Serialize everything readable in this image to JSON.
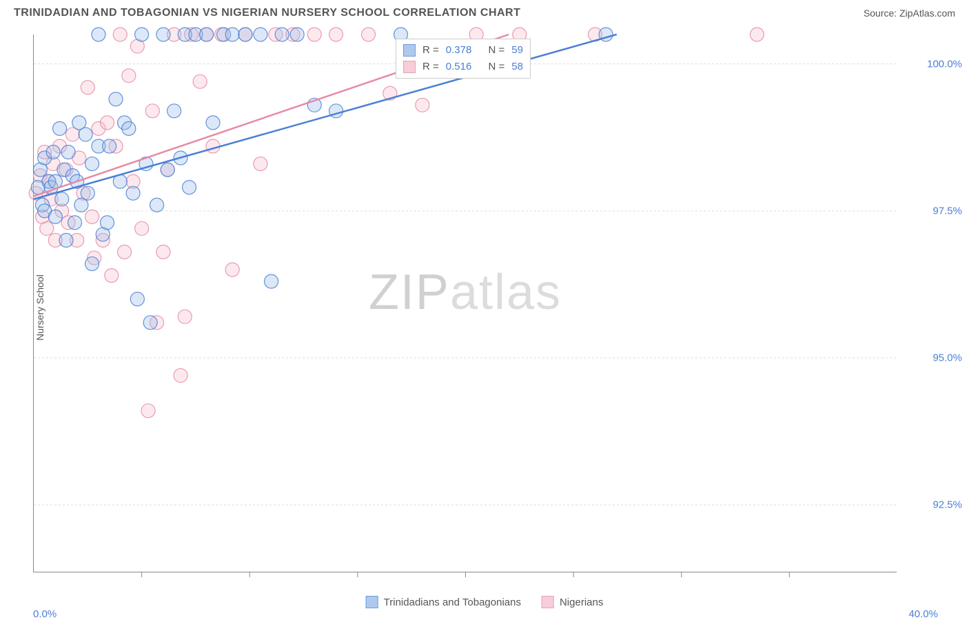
{
  "header": {
    "title": "TRINIDADIAN AND TOBAGONIAN VS NIGERIAN NURSERY SCHOOL CORRELATION CHART",
    "source_label": "Source: ",
    "source_value": "ZipAtlas.com"
  },
  "watermark": {
    "bold": "ZIP",
    "light": "atlas"
  },
  "chart": {
    "type": "scatter",
    "background_color": "#ffffff",
    "grid_color": "#dddddd",
    "axis_color": "#888888",
    "text_color": "#555555",
    "tick_color": "#4a7fd6",
    "font_size_title": 16,
    "font_size_labels": 14,
    "font_size_ticks": 15,
    "ylabel": "Nursery School",
    "xlim": [
      0.0,
      40.0
    ],
    "ylim": [
      91.35,
      100.5
    ],
    "x_ticks_minor": [
      5,
      10,
      15,
      20,
      25,
      30,
      35
    ],
    "x_tick_labels": {
      "start": "0.0%",
      "end": "40.0%"
    },
    "y_grid": [
      92.5,
      95.0,
      97.5,
      100.0
    ],
    "y_tick_labels": [
      "92.5%",
      "95.0%",
      "97.5%",
      "100.0%"
    ],
    "marker_radius": 10,
    "marker_fill_opacity": 0.35,
    "marker_stroke_width": 1.2,
    "line_width": 2.5,
    "series": [
      {
        "name": "Trinidadians and Tobagonians",
        "color_stroke": "#4a7fd6",
        "color_fill": "#9cbce9",
        "R": "0.378",
        "N": "59",
        "trend": {
          "x1": 0.0,
          "y1": 97.7,
          "x2": 27.0,
          "y2": 100.5
        },
        "points": [
          [
            0.2,
            97.9
          ],
          [
            0.3,
            98.2
          ],
          [
            0.4,
            97.6
          ],
          [
            0.5,
            98.4
          ],
          [
            0.5,
            97.5
          ],
          [
            0.7,
            98.0
          ],
          [
            0.8,
            97.9
          ],
          [
            0.9,
            98.5
          ],
          [
            1.0,
            98.0
          ],
          [
            1.0,
            97.4
          ],
          [
            1.2,
            98.9
          ],
          [
            1.3,
            97.7
          ],
          [
            1.4,
            98.2
          ],
          [
            1.5,
            97.0
          ],
          [
            1.6,
            98.5
          ],
          [
            1.8,
            98.1
          ],
          [
            1.9,
            97.3
          ],
          [
            2.0,
            98.0
          ],
          [
            2.1,
            99.0
          ],
          [
            2.2,
            97.6
          ],
          [
            2.4,
            98.8
          ],
          [
            2.5,
            97.8
          ],
          [
            2.7,
            96.6
          ],
          [
            2.7,
            98.3
          ],
          [
            3.0,
            98.6
          ],
          [
            3.0,
            100.5
          ],
          [
            3.2,
            97.1
          ],
          [
            3.4,
            97.3
          ],
          [
            3.5,
            98.6
          ],
          [
            3.8,
            99.4
          ],
          [
            4.0,
            98.0
          ],
          [
            4.2,
            99.0
          ],
          [
            4.4,
            98.9
          ],
          [
            4.6,
            97.8
          ],
          [
            4.8,
            96.0
          ],
          [
            5.0,
            100.5
          ],
          [
            5.2,
            98.3
          ],
          [
            5.4,
            95.6
          ],
          [
            5.7,
            97.6
          ],
          [
            6.0,
            100.5
          ],
          [
            6.2,
            98.2
          ],
          [
            6.5,
            99.2
          ],
          [
            6.8,
            98.4
          ],
          [
            7.0,
            100.5
          ],
          [
            7.2,
            97.9
          ],
          [
            7.5,
            100.5
          ],
          [
            8.0,
            100.5
          ],
          [
            8.3,
            99.0
          ],
          [
            8.8,
            100.5
          ],
          [
            9.2,
            100.5
          ],
          [
            9.8,
            100.5
          ],
          [
            10.5,
            100.5
          ],
          [
            11.0,
            96.3
          ],
          [
            11.5,
            100.5
          ],
          [
            12.2,
            100.5
          ],
          [
            13.0,
            99.3
          ],
          [
            14.0,
            99.2
          ],
          [
            17.0,
            100.5
          ],
          [
            26.5,
            100.5
          ]
        ]
      },
      {
        "name": "Nigerians",
        "color_stroke": "#e68aa4",
        "color_fill": "#f5c1cf",
        "R": "0.516",
        "N": "58",
        "trend": {
          "x1": 0.0,
          "y1": 97.75,
          "x2": 22.0,
          "y2": 100.5
        },
        "points": [
          [
            0.1,
            97.8
          ],
          [
            0.3,
            98.1
          ],
          [
            0.4,
            97.4
          ],
          [
            0.5,
            98.5
          ],
          [
            0.6,
            97.2
          ],
          [
            0.7,
            98.0
          ],
          [
            0.8,
            97.7
          ],
          [
            0.9,
            98.3
          ],
          [
            1.0,
            97.0
          ],
          [
            1.2,
            98.6
          ],
          [
            1.3,
            97.5
          ],
          [
            1.5,
            98.2
          ],
          [
            1.6,
            97.3
          ],
          [
            1.8,
            98.8
          ],
          [
            2.0,
            97.0
          ],
          [
            2.1,
            98.4
          ],
          [
            2.3,
            97.8
          ],
          [
            2.5,
            99.6
          ],
          [
            2.7,
            97.4
          ],
          [
            2.8,
            96.7
          ],
          [
            3.0,
            98.9
          ],
          [
            3.2,
            97.0
          ],
          [
            3.4,
            99.0
          ],
          [
            3.6,
            96.4
          ],
          [
            3.8,
            98.6
          ],
          [
            4.0,
            100.5
          ],
          [
            4.2,
            96.8
          ],
          [
            4.4,
            99.8
          ],
          [
            4.6,
            98.0
          ],
          [
            4.8,
            100.3
          ],
          [
            5.0,
            97.2
          ],
          [
            5.3,
            94.1
          ],
          [
            5.5,
            99.2
          ],
          [
            5.7,
            95.6
          ],
          [
            6.0,
            96.8
          ],
          [
            6.2,
            98.2
          ],
          [
            6.5,
            100.5
          ],
          [
            6.8,
            94.7
          ],
          [
            7.0,
            95.7
          ],
          [
            7.3,
            100.5
          ],
          [
            7.7,
            99.7
          ],
          [
            8.0,
            100.5
          ],
          [
            8.3,
            98.6
          ],
          [
            8.7,
            100.5
          ],
          [
            9.2,
            96.5
          ],
          [
            9.8,
            100.5
          ],
          [
            10.5,
            98.3
          ],
          [
            11.2,
            100.5
          ],
          [
            12.0,
            100.5
          ],
          [
            13.0,
            100.5
          ],
          [
            14.0,
            100.5
          ],
          [
            15.5,
            100.5
          ],
          [
            16.5,
            99.5
          ],
          [
            18.0,
            99.3
          ],
          [
            20.5,
            100.5
          ],
          [
            22.5,
            100.5
          ],
          [
            26.0,
            100.5
          ],
          [
            33.5,
            100.5
          ]
        ]
      }
    ],
    "bottom_legend": {
      "series1_label": "Trinidadians and Tobagonians",
      "series2_label": "Nigerians"
    },
    "rn_legend": {
      "R_label": "R =",
      "N_label": "N ="
    }
  }
}
